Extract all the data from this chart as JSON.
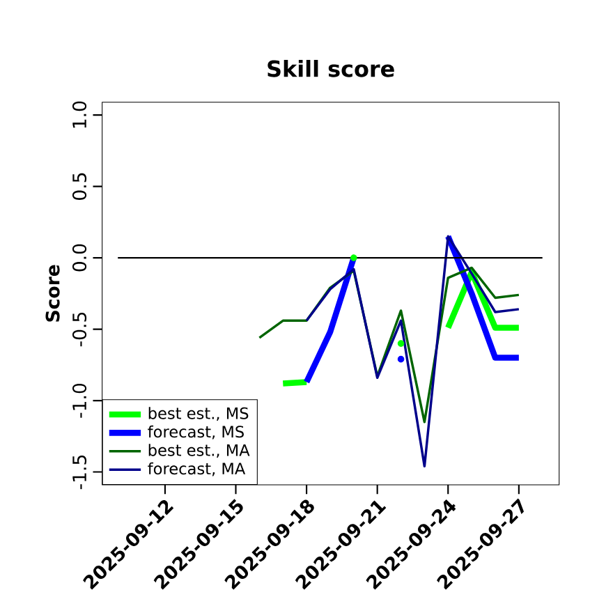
{
  "chart_data": {
    "type": "line",
    "title": "Skill score",
    "ylabel": "Score",
    "x": [
      "2025-09-16",
      "2025-09-17",
      "2025-09-18",
      "2025-09-19",
      "2025-09-20",
      "2025-09-21",
      "2025-09-22",
      "2025-09-23",
      "2025-09-24",
      "2025-09-25",
      "2025-09-26",
      "2025-09-27"
    ],
    "series": [
      {
        "name": "best est., MS",
        "color": "#00ff00",
        "values": [
          null,
          -0.88,
          -0.87,
          null,
          0.0,
          null,
          -0.6,
          null,
          -0.49,
          -0.1,
          -0.49,
          -0.49
        ]
      },
      {
        "name": "forecast, MS",
        "color": "#0000ff",
        "values": [
          null,
          null,
          -0.87,
          -0.52,
          0.0,
          null,
          -0.71,
          null,
          0.15,
          -0.25,
          -0.7,
          -0.7
        ]
      },
      {
        "name": "best est., MA",
        "color": "#006400",
        "values": [
          -0.56,
          -0.44,
          -0.44,
          -0.21,
          -0.09,
          -0.83,
          -0.37,
          -1.15,
          -0.14,
          -0.07,
          -0.28,
          -0.26
        ]
      },
      {
        "name": "forecast, MA",
        "color": "#00008b",
        "values": [
          null,
          null,
          -0.44,
          -0.22,
          -0.08,
          -0.84,
          -0.44,
          -1.46,
          0.15,
          -0.11,
          -0.38,
          -0.36
        ]
      },
      {
        "color": "#000000",
        "x": [
          "2025-09-10",
          "2025-09-28"
        ],
        "values": [
          0,
          0
        ]
      }
    ],
    "xlim": [
      "2025-09-09T08:00",
      "2025-09-28T17:00"
    ],
    "xticks": [
      "2025-09-12",
      "2025-09-15",
      "2025-09-18",
      "2025-09-21",
      "2025-09-24",
      "2025-09-27"
    ],
    "ylim": [
      -1.59,
      1.09
    ],
    "yticks": [
      {
        "value": -1.5,
        "label": "-1.5"
      },
      {
        "value": -1.0,
        "label": "-1.0"
      },
      {
        "value": -0.5,
        "label": "-0.5"
      },
      {
        "value": 0.0,
        "label": "0.0"
      },
      {
        "value": 0.5,
        "label": "0.5"
      },
      {
        "value": 1.0,
        "label": "1.0"
      }
    ],
    "legend": "bottom left",
    "marker": "none",
    "line_style": "solid",
    "grid": false
  }
}
